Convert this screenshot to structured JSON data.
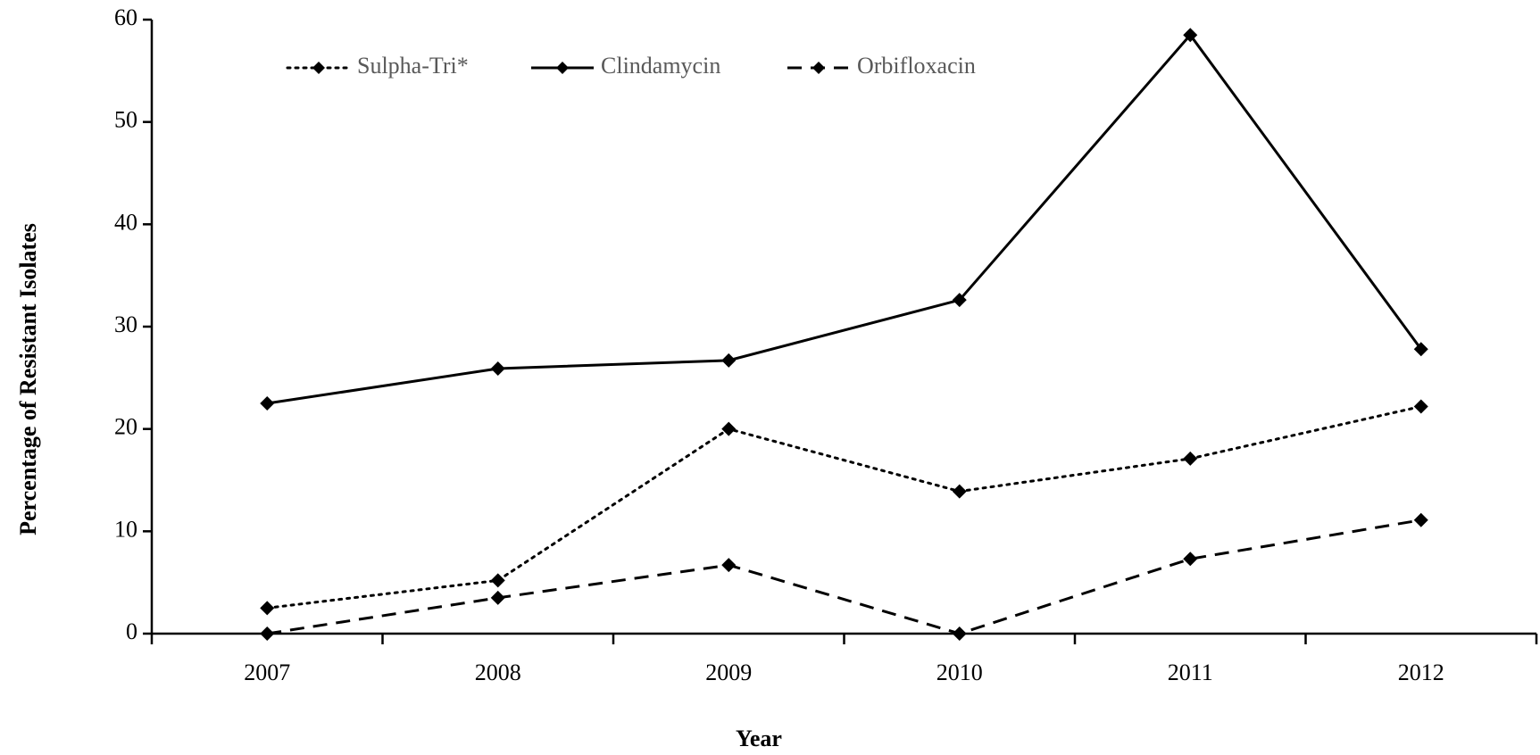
{
  "chart_data": {
    "type": "line",
    "xlabel": "Year",
    "ylabel": "Percentage of Resistant Isolates",
    "categories": [
      "2007",
      "2008",
      "2009",
      "2010",
      "2011",
      "2012"
    ],
    "series": [
      {
        "name": "Sulpha-Tri*",
        "color": "#000000",
        "line_style": "dotted",
        "values": [
          2.5,
          5.2,
          20,
          13.9,
          17.1,
          22.2
        ]
      },
      {
        "name": "Clindamycin",
        "color": "#000000",
        "line_style": "solid",
        "values": [
          22.5,
          25.9,
          26.7,
          32.6,
          58.5,
          27.8
        ]
      },
      {
        "name": "Orbifloxacin",
        "color": "#000000",
        "line_style": "dashed",
        "values": [
          0,
          3.5,
          6.7,
          0,
          7.3,
          11.1
        ]
      }
    ],
    "ylim": [
      0,
      60
    ],
    "yticks": [
      0,
      10,
      20,
      30,
      40,
      50,
      60
    ],
    "grid": false,
    "legend": "top-left"
  }
}
